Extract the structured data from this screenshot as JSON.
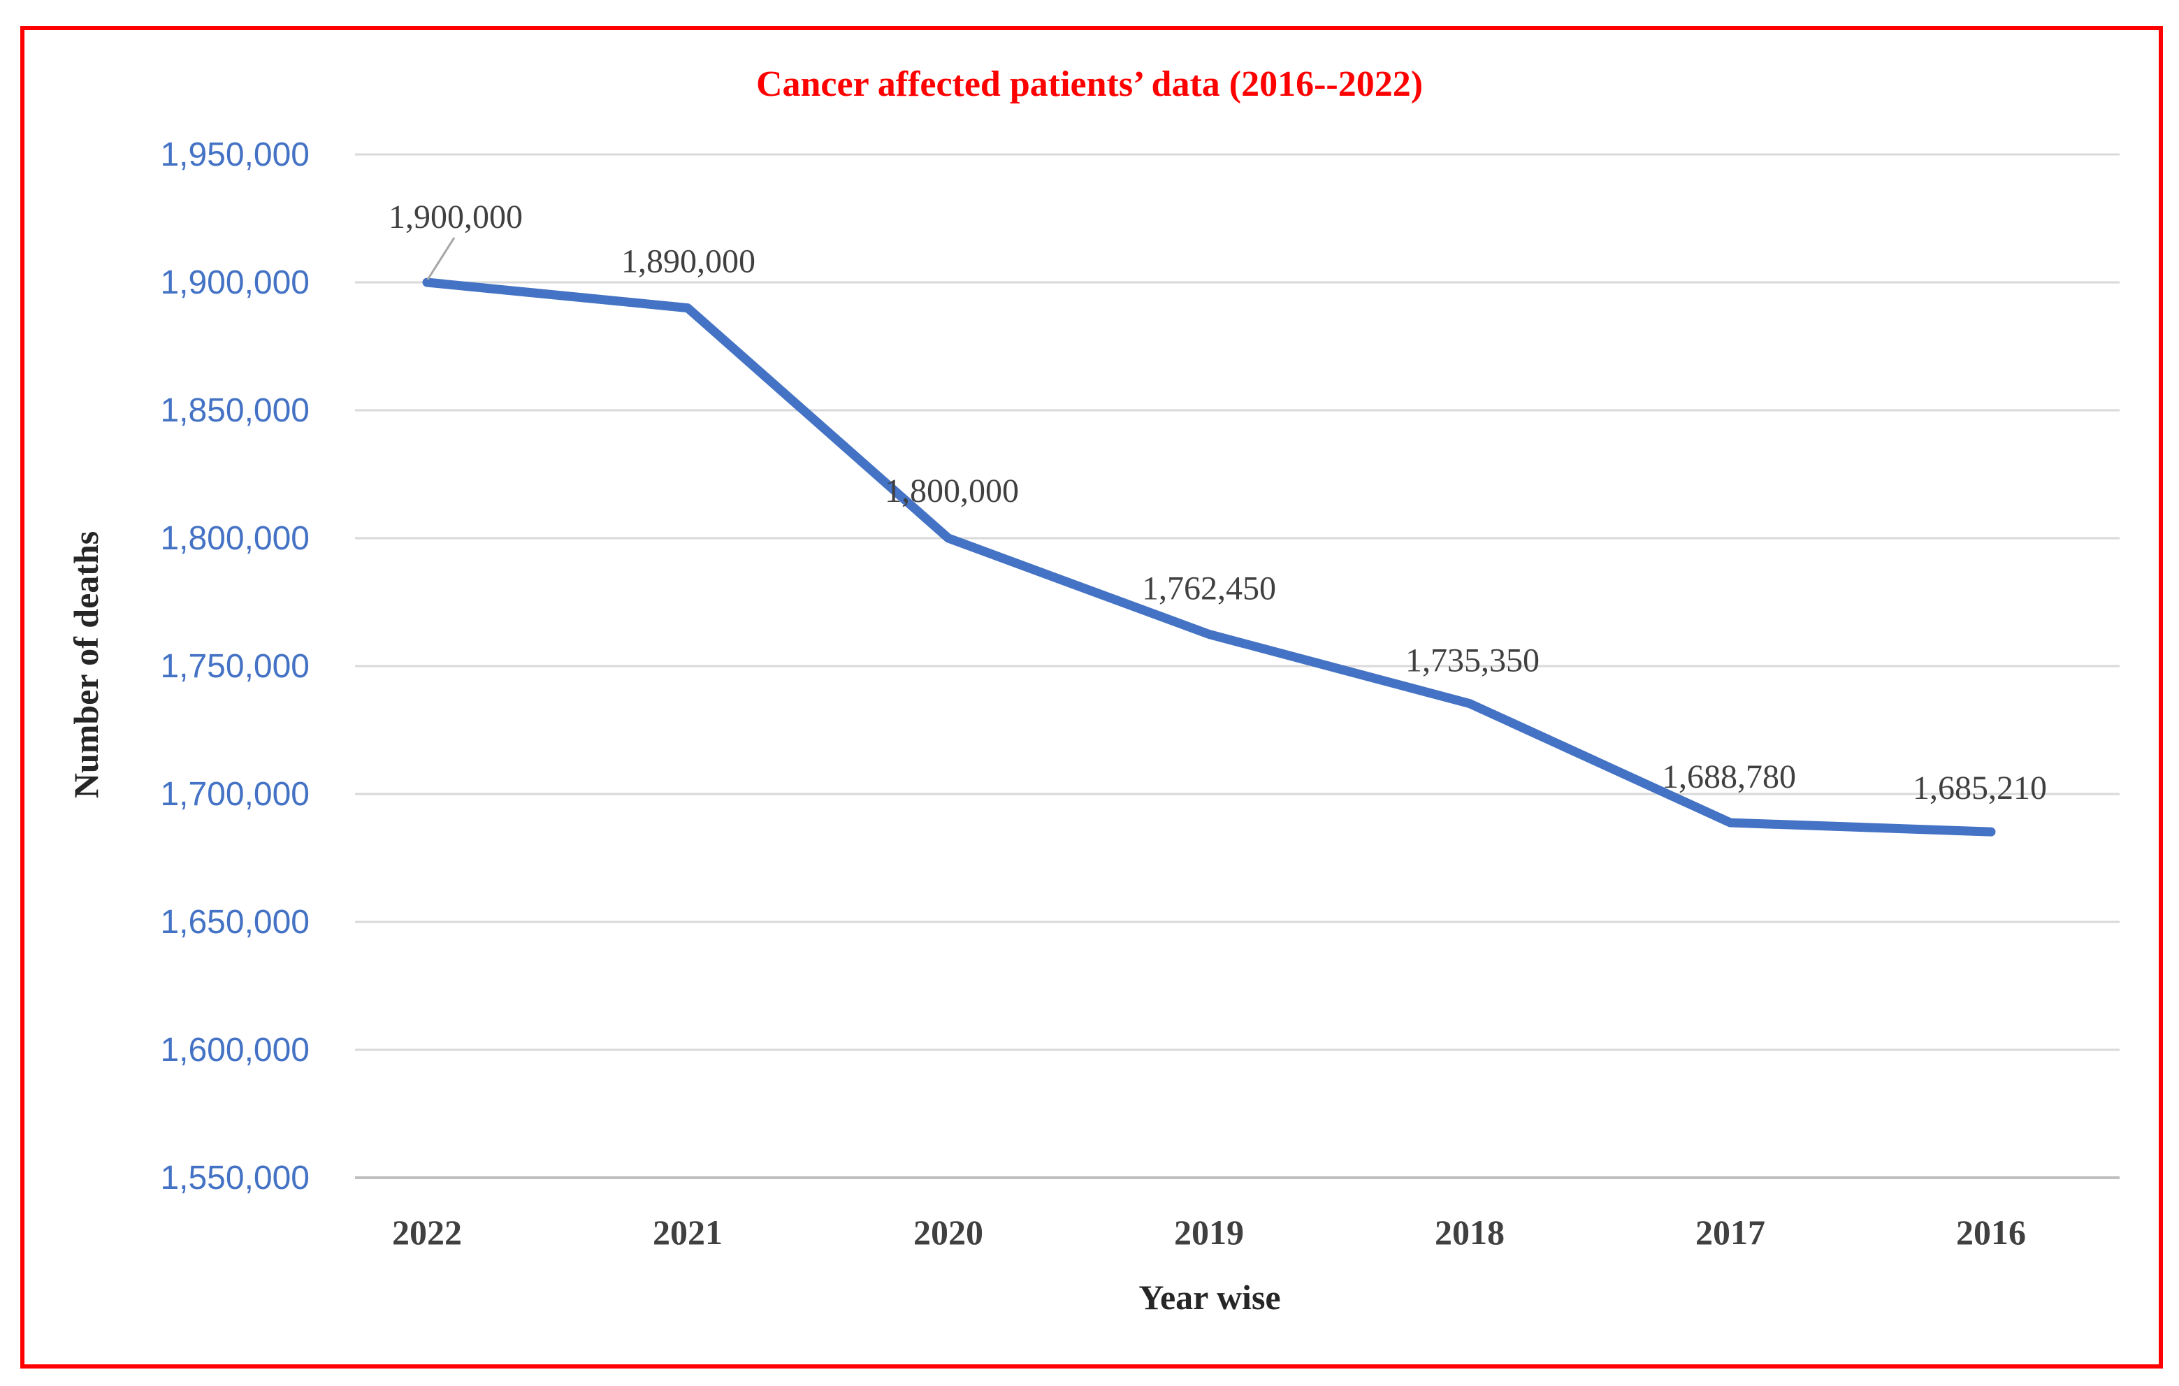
{
  "figure": {
    "border_color": "#FF0000",
    "background": "#FFFFFF"
  },
  "chart_data": {
    "type": "line",
    "title": "Cancer affected patients’ data (2016--2022)",
    "title_color": "#FF0000",
    "categories": [
      "2022",
      "2021",
      "2020",
      "2019",
      "2018",
      "2017",
      "2016"
    ],
    "values": [
      1900000,
      1890000,
      1800000,
      1762450,
      1735350,
      1688780,
      1685210
    ],
    "point_labels": [
      "1,900,000",
      "1,890,000",
      "1,800,000",
      "1,762,450",
      "1,735,350",
      "1,688,780",
      "1,685,210"
    ],
    "xlabel": "Year wise",
    "ylabel": "Number of deaths",
    "ylim": [
      1550000,
      1950000
    ],
    "y_ticks": [
      1950000,
      1900000,
      1850000,
      1800000,
      1750000,
      1700000,
      1650000,
      1600000,
      1550000
    ],
    "y_tick_step": 50000,
    "y_tick_labels": [
      "1,950,000",
      "1,900,000",
      "1,850,000",
      "1,800,000",
      "1,750,000",
      "1,700,000",
      "1,650,000",
      "1,600,000",
      "1,550,000"
    ],
    "grid": true,
    "legend": "none",
    "line_color": "#4472C4",
    "tick_label_color": "#4472C4",
    "category_label_color": "#404040",
    "data_label_color": "#404040",
    "gridline_color": "#D9D9D9",
    "axis_line_color": "#BFBFBF",
    "leader_line_color": "#A6A6A6"
  }
}
